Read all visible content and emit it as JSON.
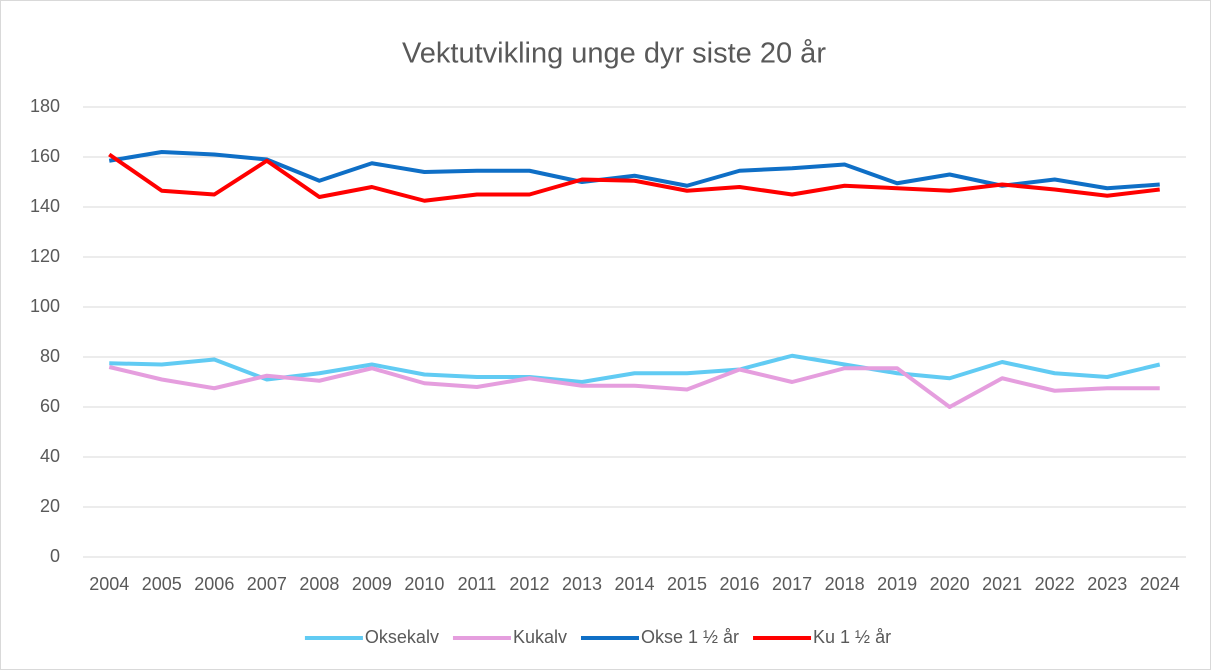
{
  "chart_data": {
    "type": "line",
    "title": "Vektutvikling unge dyr siste 20 år",
    "categories": [
      "2004",
      "2005",
      "2006",
      "2007",
      "2008",
      "2009",
      "2010",
      "2011",
      "2012",
      "2013",
      "2014",
      "2015",
      "2016",
      "2017",
      "2018",
      "2019",
      "2020",
      "2021",
      "2022",
      "2023",
      "2024"
    ],
    "series": [
      {
        "name": "Oksekalv",
        "color": "#61cbf3",
        "values": [
          77.5,
          77,
          79,
          71,
          73.5,
          77,
          73,
          72,
          72,
          70,
          73.5,
          73.5,
          75,
          80.5,
          77,
          73.5,
          71.5,
          78,
          73.5,
          72,
          77
        ]
      },
      {
        "name": "Kukalv",
        "color": "#e59ede",
        "values": [
          76,
          71,
          67.5,
          72.5,
          70.5,
          75.5,
          69.5,
          68,
          71.5,
          68.5,
          68.5,
          67,
          75,
          70,
          75.5,
          75.5,
          60,
          71.5,
          66.5,
          67.5,
          67.5
        ]
      },
      {
        "name": "Okse 1 ½ år",
        "color": "#0f6fc6",
        "values": [
          158.5,
          162,
          161,
          159,
          150.5,
          157.5,
          154,
          154.5,
          154.5,
          150,
          152.5,
          148.5,
          154.5,
          155.5,
          157,
          149.5,
          153,
          148.5,
          151,
          147.5,
          149
        ]
      },
      {
        "name": "Ku 1 ½ år",
        "color": "#ff0000",
        "values": [
          161,
          146.5,
          145,
          158.5,
          144,
          148,
          142.5,
          145,
          145,
          151,
          150.5,
          146.5,
          148,
          145,
          148.5,
          147.5,
          146.5,
          149,
          147,
          144.5,
          147
        ]
      }
    ],
    "ylim": [
      0,
      180
    ],
    "yticks": [
      0,
      20,
      40,
      60,
      80,
      100,
      120,
      140,
      160,
      180
    ],
    "grid": true,
    "legend": "bottom"
  }
}
